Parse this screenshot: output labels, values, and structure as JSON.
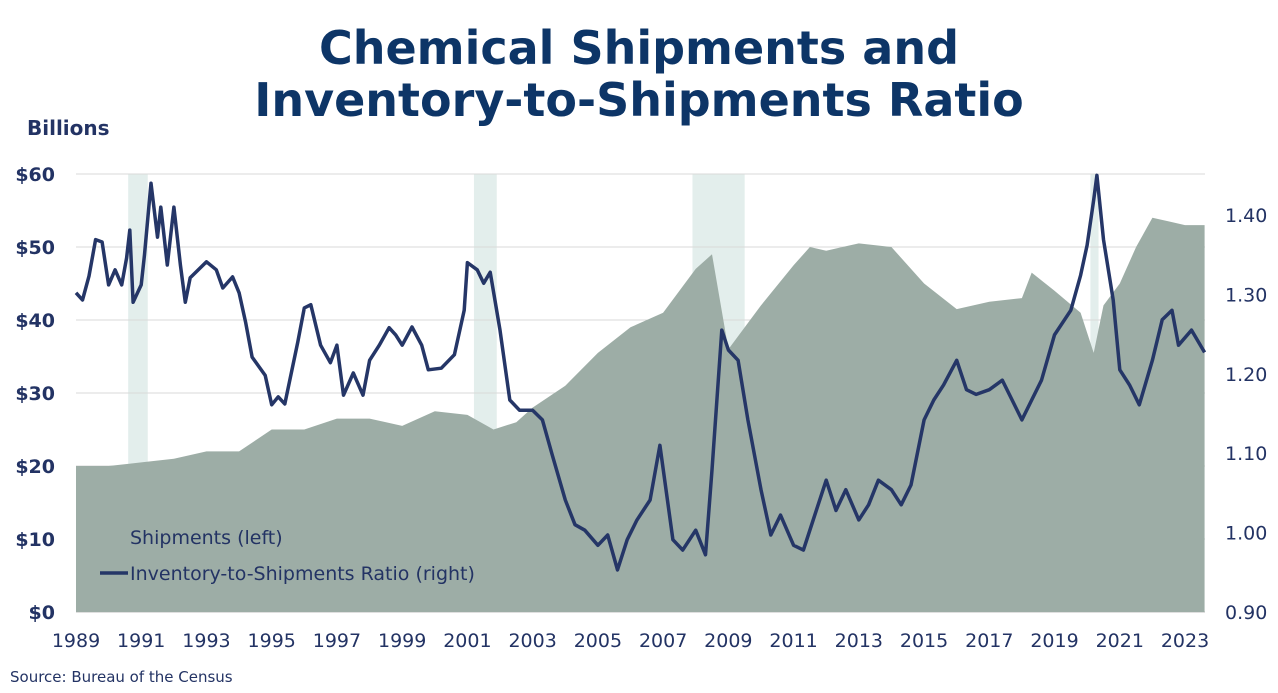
{
  "title_line1": "Chemical Shipments and",
  "title_line2": "Inventory-to-Shipments Ratio",
  "units_label": "Billions",
  "source": "Source:  Bureau of the Census",
  "colors": {
    "title": "#0d3567",
    "shipments": "#9dada6",
    "ratio": "#253667",
    "recession": "#e3eeec"
  },
  "chart_data": {
    "type": "area+line",
    "title": "Chemical Shipments and Inventory-to-Shipments Ratio",
    "ylabel_left": "Billions",
    "ylim_left": [
      0,
      60
    ],
    "ylim_right": [
      0.9,
      1.45
    ],
    "xlim": [
      1989,
      2023.6
    ],
    "grid": true,
    "legend_placement": "bottom-left",
    "x_ticks": [
      "1989",
      "1991",
      "1993",
      "1995",
      "1997",
      "1999",
      "2001",
      "2003",
      "2005",
      "2007",
      "2009",
      "2011",
      "2013",
      "2015",
      "2017",
      "2019",
      "2021",
      "2023"
    ],
    "left_ticks": [
      "$0",
      "$10",
      "$20",
      "$30",
      "$40",
      "$50",
      "$60"
    ],
    "right_ticks": [
      "0.90",
      "1.00",
      "1.10",
      "1.20",
      "1.30",
      "1.40"
    ],
    "recessions": [
      [
        1990.6,
        1991.2
      ],
      [
        2001.2,
        2001.9
      ],
      [
        2007.9,
        2009.5
      ],
      [
        2020.1,
        2020.35
      ]
    ],
    "series": [
      {
        "name": "Shipments (left)",
        "axis": "left",
        "style": "area",
        "x": [
          1989,
          1990,
          1991,
          1992,
          1993,
          1994,
          1995,
          1996,
          1997,
          1998,
          1999,
          2000,
          2001,
          2001.8,
          2002.5,
          2003,
          2004,
          2005,
          2006,
          2007,
          2008,
          2008.5,
          2009,
          2010,
          2011,
          2011.5,
          2012,
          2012.5,
          2013,
          2014,
          2015,
          2016,
          2017,
          2018,
          2018.3,
          2019,
          2019.8,
          2020.2,
          2020.5,
          2021,
          2021.5,
          2022,
          2022.5,
          2023,
          2023.6
        ],
        "values": [
          20,
          20,
          20.5,
          21,
          22,
          22,
          25,
          25,
          26.5,
          26.5,
          25.5,
          27.5,
          27,
          25,
          26,
          28,
          31,
          35.5,
          39,
          41,
          47,
          49,
          36,
          42,
          47.5,
          50,
          49.5,
          50,
          50.5,
          50,
          45,
          41.5,
          42.5,
          43,
          46.5,
          44,
          41,
          35.5,
          42,
          45,
          50,
          54,
          53.5,
          53,
          53
        ]
      },
      {
        "name": "Inventory-to-Shipments Ratio (right)",
        "axis": "right",
        "style": "line",
        "x": [
          1989,
          1989.2,
          1989.4,
          1989.6,
          1989.8,
          1990,
          1990.2,
          1990.4,
          1990.55,
          1990.65,
          1990.75,
          1991,
          1991.1,
          1991.3,
          1991.5,
          1991.6,
          1991.8,
          1992,
          1992.2,
          1992.35,
          1992.5,
          1993,
          1993.3,
          1993.5,
          1993.8,
          1994,
          1994.2,
          1994.4,
          1994.8,
          1995,
          1995.2,
          1995.4,
          1995.6,
          1995.8,
          1996,
          1996.2,
          1996.5,
          1996.8,
          1997,
          1997.2,
          1997.5,
          1997.8,
          1998,
          1998.3,
          1998.6,
          1998.8,
          1999,
          1999.3,
          1999.6,
          1999.8,
          2000.2,
          2000.6,
          2000.9,
          2001,
          2001.3,
          2001.5,
          2001.7,
          2002,
          2002.3,
          2002.6,
          2003,
          2003.3,
          2003.6,
          2004,
          2004.3,
          2004.6,
          2005,
          2005.3,
          2005.6,
          2005.9,
          2006.2,
          2006.6,
          2006.9,
          2007.3,
          2007.6,
          2008,
          2008.3,
          2008.5,
          2008.8,
          2009,
          2009.3,
          2009.6,
          2010,
          2010.3,
          2010.6,
          2011,
          2011.3,
          2011.6,
          2012,
          2012.3,
          2012.6,
          2013,
          2013.3,
          2013.6,
          2014,
          2014.3,
          2014.6,
          2015,
          2015.3,
          2015.6,
          2016,
          2016.3,
          2016.6,
          2017,
          2017.4,
          2017.7,
          2018,
          2018.3,
          2018.6,
          2019,
          2019.5,
          2019.8,
          2020,
          2020.2,
          2020.3,
          2020.5,
          2020.8,
          2021,
          2021.3,
          2021.6,
          2022,
          2022.3,
          2022.6,
          2022.8,
          2023.2,
          2023.6
        ],
        "values": [
          1.302,
          1.293,
          1.323,
          1.369,
          1.366,
          1.312,
          1.331,
          1.312,
          1.346,
          1.381,
          1.29,
          1.312,
          1.35,
          1.44,
          1.372,
          1.41,
          1.337,
          1.41,
          1.337,
          1.29,
          1.321,
          1.341,
          1.331,
          1.308,
          1.322,
          1.302,
          1.265,
          1.221,
          1.198,
          1.161,
          1.171,
          1.162,
          1.201,
          1.24,
          1.283,
          1.287,
          1.236,
          1.214,
          1.236,
          1.173,
          1.201,
          1.173,
          1.217,
          1.236,
          1.258,
          1.249,
          1.236,
          1.259,
          1.236,
          1.205,
          1.207,
          1.224,
          1.28,
          1.34,
          1.331,
          1.314,
          1.328,
          1.255,
          1.167,
          1.154,
          1.154,
          1.142,
          1.098,
          1.041,
          1.01,
          1.003,
          0.984,
          0.997,
          0.953,
          0.991,
          1.016,
          1.041,
          1.11,
          0.991,
          0.978,
          1.003,
          0.972,
          1.079,
          1.255,
          1.23,
          1.217,
          1.142,
          1.054,
          0.997,
          1.022,
          0.984,
          0.978,
          1.016,
          1.066,
          1.028,
          1.054,
          1.016,
          1.035,
          1.066,
          1.054,
          1.035,
          1.06,
          1.142,
          1.167,
          1.186,
          1.217,
          1.18,
          1.174,
          1.18,
          1.192,
          1.167,
          1.142,
          1.167,
          1.192,
          1.249,
          1.28,
          1.324,
          1.362,
          1.419,
          1.45,
          1.369,
          1.293,
          1.205,
          1.186,
          1.161,
          1.217,
          1.268,
          1.28,
          1.236,
          1.255,
          1.227
        ]
      }
    ]
  }
}
